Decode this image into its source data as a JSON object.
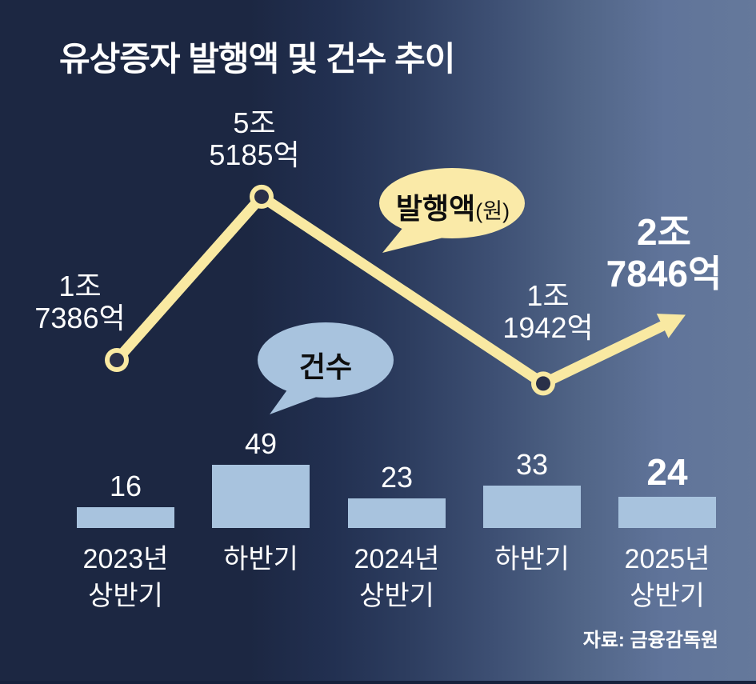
{
  "title": "유상증자 발행액 및 건수 추이",
  "source": "자료: 금융감독원",
  "legend": {
    "amount": {
      "label": "발행액",
      "unit": "(원)"
    },
    "count": {
      "label": "건수"
    }
  },
  "amount_labels": [
    {
      "l1": "1조",
      "l2": "7386억"
    },
    {
      "l1": "5조",
      "l2": "5185억"
    },
    {
      "l1": "1조",
      "l2": "1942억"
    },
    {
      "l1": "2조",
      "l2": "7846억"
    }
  ],
  "axis": [
    {
      "l1": "2023년",
      "l2": "상반기"
    },
    {
      "l1": "하반기",
      "l2": ""
    },
    {
      "l1": "2024년",
      "l2": "상반기"
    },
    {
      "l1": "하반기",
      "l2": ""
    },
    {
      "l1": "2025년",
      "l2": "상반기"
    }
  ],
  "colors": {
    "background_left": "#1C2742",
    "background_right": "#65799B",
    "line": "#F9E9A2",
    "marker_core": "#2A3049",
    "bar": "#A8C3DE",
    "amount_bubble_fill": "#FAEAA8",
    "count_bubble_fill": "#A8C3DE",
    "text": "#FFFFFF",
    "bubble_text": "#0E0E0E"
  },
  "chart_data": {
    "type": "line+bar",
    "categories": [
      "2023년 상반기",
      "하반기",
      "2024년 상반기",
      "하반기",
      "2025년 상반기"
    ],
    "series": [
      {
        "name": "발행액",
        "type": "line",
        "unit": "원",
        "values_trillion_won": [
          1.7386,
          5.5185,
          null,
          1.1942,
          2.7846
        ],
        "point_labels": [
          "1조 7386억",
          "5조 5185억",
          null,
          "1조 1942억",
          "2조 7846억"
        ],
        "note": "last point drawn as upward arrow, no value shown for 2024 상반기"
      },
      {
        "name": "건수",
        "type": "bar",
        "values": [
          16,
          49,
          23,
          33,
          24
        ]
      }
    ],
    "legend_position": "floating speech bubbles",
    "grid": false
  }
}
